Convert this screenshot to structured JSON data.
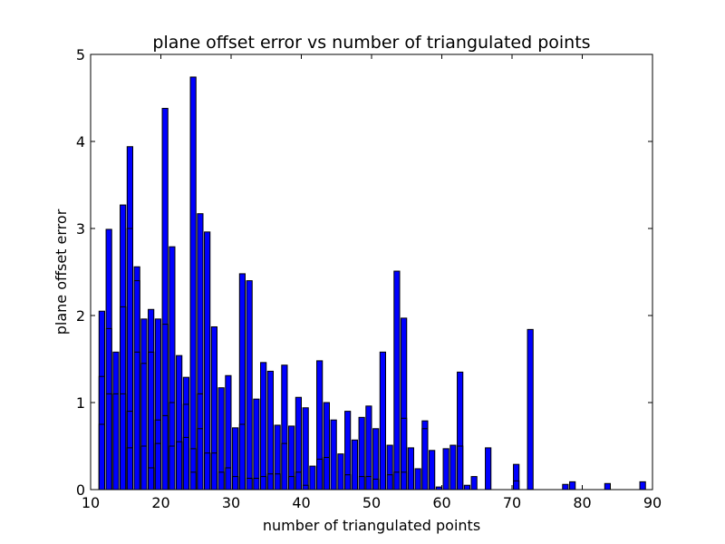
{
  "chart_data": {
    "type": "bar",
    "title": "plane offset error vs number of triangulated points",
    "xlabel": "number of triangulated points",
    "ylabel": "plane offset error",
    "xlim": [
      10,
      90
    ],
    "ylim": [
      0,
      5
    ],
    "xticks": [
      10,
      20,
      30,
      40,
      50,
      60,
      70,
      80,
      90
    ],
    "yticks": [
      0,
      1,
      2,
      3,
      4,
      5
    ],
    "bar_color": "#0000ff",
    "edge_color": "#000000",
    "grid": false,
    "legend": "none",
    "bars": [
      {
        "x": 11.6,
        "y": 2.05
      },
      {
        "x": 11.6,
        "y": 1.3
      },
      {
        "x": 11.6,
        "y": 0.75
      },
      {
        "x": 12.6,
        "y": 2.99
      },
      {
        "x": 12.6,
        "y": 1.85
      },
      {
        "x": 12.6,
        "y": 1.1
      },
      {
        "x": 13.6,
        "y": 1.58
      },
      {
        "x": 13.6,
        "y": 1.1
      },
      {
        "x": 14.6,
        "y": 3.27
      },
      {
        "x": 14.6,
        "y": 2.1
      },
      {
        "x": 14.6,
        "y": 1.1
      },
      {
        "x": 15.6,
        "y": 3.94
      },
      {
        "x": 15.6,
        "y": 3.0
      },
      {
        "x": 15.6,
        "y": 0.9
      },
      {
        "x": 15.6,
        "y": 0.48
      },
      {
        "x": 16.6,
        "y": 2.56
      },
      {
        "x": 16.6,
        "y": 2.4
      },
      {
        "x": 16.6,
        "y": 1.58
      },
      {
        "x": 17.6,
        "y": 1.96
      },
      {
        "x": 17.6,
        "y": 1.45
      },
      {
        "x": 17.6,
        "y": 0.5
      },
      {
        "x": 18.6,
        "y": 2.07
      },
      {
        "x": 18.6,
        "y": 1.58
      },
      {
        "x": 18.6,
        "y": 0.25
      },
      {
        "x": 19.6,
        "y": 1.96
      },
      {
        "x": 19.6,
        "y": 0.8
      },
      {
        "x": 19.6,
        "y": 0.53
      },
      {
        "x": 20.6,
        "y": 4.38
      },
      {
        "x": 20.6,
        "y": 1.9
      },
      {
        "x": 20.6,
        "y": 0.85
      },
      {
        "x": 21.6,
        "y": 2.79
      },
      {
        "x": 21.6,
        "y": 1.0
      },
      {
        "x": 21.6,
        "y": 0.5
      },
      {
        "x": 22.6,
        "y": 1.54
      },
      {
        "x": 22.6,
        "y": 0.55
      },
      {
        "x": 23.6,
        "y": 1.29
      },
      {
        "x": 23.6,
        "y": 0.98
      },
      {
        "x": 23.6,
        "y": 0.6
      },
      {
        "x": 24.6,
        "y": 4.74
      },
      {
        "x": 24.6,
        "y": 0.47
      },
      {
        "x": 24.6,
        "y": 0.2
      },
      {
        "x": 25.6,
        "y": 3.17
      },
      {
        "x": 25.6,
        "y": 1.1
      },
      {
        "x": 25.6,
        "y": 0.7
      },
      {
        "x": 26.6,
        "y": 2.96
      },
      {
        "x": 26.6,
        "y": 0.42
      },
      {
        "x": 27.6,
        "y": 1.87
      },
      {
        "x": 27.6,
        "y": 0.42
      },
      {
        "x": 28.6,
        "y": 1.17
      },
      {
        "x": 28.6,
        "y": 0.2
      },
      {
        "x": 29.6,
        "y": 1.31
      },
      {
        "x": 29.6,
        "y": 0.25
      },
      {
        "x": 30.6,
        "y": 0.71
      },
      {
        "x": 30.6,
        "y": 0.15
      },
      {
        "x": 31.6,
        "y": 2.48
      },
      {
        "x": 31.6,
        "y": 0.75
      },
      {
        "x": 32.6,
        "y": 2.4
      },
      {
        "x": 32.6,
        "y": 0.13
      },
      {
        "x": 33.6,
        "y": 1.04
      },
      {
        "x": 33.6,
        "y": 0.13
      },
      {
        "x": 34.6,
        "y": 1.46
      },
      {
        "x": 34.6,
        "y": 0.15
      },
      {
        "x": 35.6,
        "y": 1.36
      },
      {
        "x": 35.6,
        "y": 0.18
      },
      {
        "x": 36.6,
        "y": 0.74
      },
      {
        "x": 36.6,
        "y": 0.18
      },
      {
        "x": 37.6,
        "y": 1.43
      },
      {
        "x": 37.6,
        "y": 0.53
      },
      {
        "x": 38.6,
        "y": 0.73
      },
      {
        "x": 38.6,
        "y": 0.15
      },
      {
        "x": 39.6,
        "y": 1.06
      },
      {
        "x": 39.6,
        "y": 0.2
      },
      {
        "x": 40.6,
        "y": 0.94
      },
      {
        "x": 40.6,
        "y": 0.05
      },
      {
        "x": 41.6,
        "y": 0.27
      },
      {
        "x": 42.6,
        "y": 1.48
      },
      {
        "x": 42.6,
        "y": 0.35
      },
      {
        "x": 43.6,
        "y": 1.0
      },
      {
        "x": 43.6,
        "y": 0.37
      },
      {
        "x": 44.6,
        "y": 0.8
      },
      {
        "x": 45.6,
        "y": 0.41
      },
      {
        "x": 46.6,
        "y": 0.9
      },
      {
        "x": 46.6,
        "y": 0.17
      },
      {
        "x": 47.6,
        "y": 0.57
      },
      {
        "x": 48.6,
        "y": 0.83
      },
      {
        "x": 48.6,
        "y": 0.15
      },
      {
        "x": 49.6,
        "y": 0.96
      },
      {
        "x": 49.6,
        "y": 0.15
      },
      {
        "x": 50.6,
        "y": 0.7
      },
      {
        "x": 50.6,
        "y": 0.12
      },
      {
        "x": 51.6,
        "y": 1.58
      },
      {
        "x": 52.6,
        "y": 0.51
      },
      {
        "x": 52.6,
        "y": 0.17
      },
      {
        "x": 53.6,
        "y": 2.51
      },
      {
        "x": 53.6,
        "y": 0.2
      },
      {
        "x": 54.6,
        "y": 1.97
      },
      {
        "x": 54.6,
        "y": 0.82
      },
      {
        "x": 54.6,
        "y": 0.2
      },
      {
        "x": 55.6,
        "y": 0.48
      },
      {
        "x": 56.6,
        "y": 0.24
      },
      {
        "x": 57.6,
        "y": 0.79
      },
      {
        "x": 57.6,
        "y": 0.7
      },
      {
        "x": 58.6,
        "y": 0.45
      },
      {
        "x": 59.6,
        "y": 0.03
      },
      {
        "x": 60.6,
        "y": 0.47
      },
      {
        "x": 61.6,
        "y": 0.51
      },
      {
        "x": 62.6,
        "y": 1.35
      },
      {
        "x": 62.6,
        "y": 0.5
      },
      {
        "x": 63.6,
        "y": 0.05
      },
      {
        "x": 64.6,
        "y": 0.15
      },
      {
        "x": 66.6,
        "y": 0.48
      },
      {
        "x": 70.6,
        "y": 0.29
      },
      {
        "x": 70.6,
        "y": 0.1
      },
      {
        "x": 72.6,
        "y": 1.84
      },
      {
        "x": 77.6,
        "y": 0.06
      },
      {
        "x": 78.6,
        "y": 0.09
      },
      {
        "x": 83.6,
        "y": 0.07
      },
      {
        "x": 88.6,
        "y": 0.09
      }
    ]
  }
}
